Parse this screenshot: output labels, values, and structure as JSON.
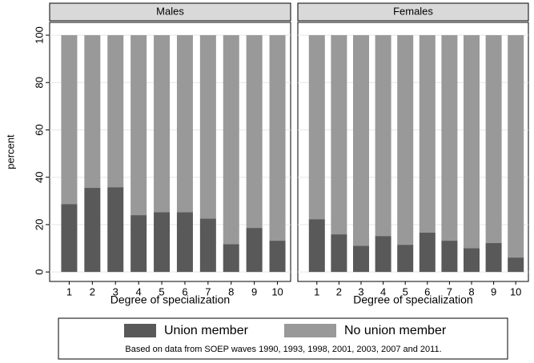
{
  "chart_data": {
    "type": "stacked-bar",
    "y_label": "percent",
    "ylim": [
      -4,
      105.4
    ],
    "yticks": [
      0,
      20,
      40,
      60,
      80,
      100
    ],
    "grid": true,
    "panels": [
      {
        "title": "Males",
        "x_label": "Degree of specialization",
        "categories": [
          "1",
          "2",
          "3",
          "4",
          "5",
          "6",
          "7",
          "8",
          "9",
          "10"
        ],
        "series": [
          {
            "name": "Union member",
            "color": "#595959",
            "values": [
              28.7,
              35.5,
              35.8,
              24.0,
              25.3,
              25.3,
              22.6,
              11.8,
              18.6,
              13.2
            ]
          },
          {
            "name": "No union member",
            "color": "#999999",
            "values": [
              71.3,
              64.5,
              64.2,
              76.0,
              74.7,
              74.7,
              77.4,
              88.2,
              81.4,
              86.8
            ]
          }
        ]
      },
      {
        "title": "Females",
        "x_label": "Degree of specialization",
        "categories": [
          "1",
          "2",
          "3",
          "4",
          "5",
          "6",
          "7",
          "8",
          "9",
          "10"
        ],
        "series": [
          {
            "name": "Union member",
            "color": "#595959",
            "values": [
              22.3,
              15.9,
              11.1,
              15.2,
              11.5,
              16.6,
              13.2,
              10.1,
              12.2,
              6.1
            ]
          },
          {
            "name": "No union member",
            "color": "#999999",
            "values": [
              77.7,
              84.1,
              88.9,
              84.8,
              88.5,
              83.4,
              86.8,
              89.9,
              87.8,
              93.9
            ]
          }
        ]
      }
    ],
    "note": "Based on data from SOEP waves 1990, 1993, 1998, 2001, 2003, 2007 and 2011."
  }
}
